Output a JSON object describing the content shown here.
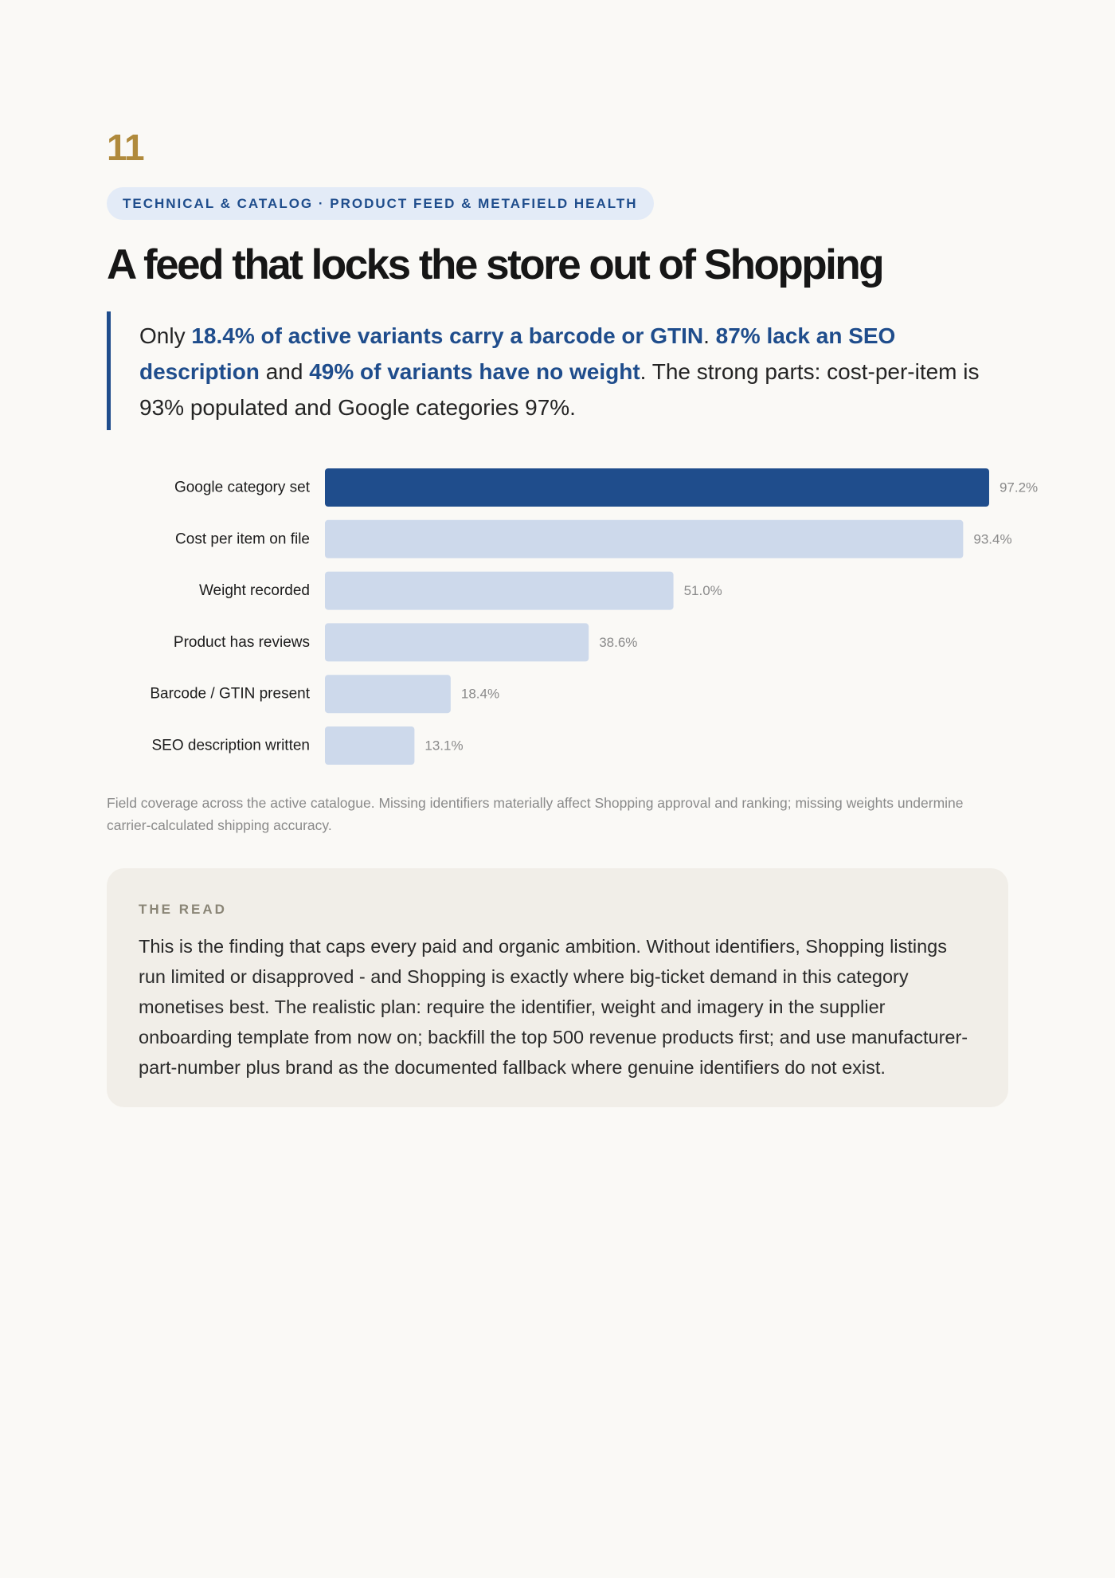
{
  "page": {
    "number": "11",
    "section_tag": "TECHNICAL & CATALOG · PRODUCT FEED & METAFIELD HEALTH",
    "headline": "A feed that locks the store out of Shopping"
  },
  "lede": {
    "t1": "Only ",
    "h1": "18.4% of active variants carry a barcode or GTIN",
    "t2": ". ",
    "h2": "87% lack an SEO description",
    "t3": " and ",
    "h3": "49% of variants have no weight",
    "t4": ". The strong parts: cost-per-item is 93% populated and Google categories 97%."
  },
  "chart_data": {
    "type": "bar",
    "orientation": "horizontal",
    "title": "",
    "xlabel": "",
    "ylabel": "",
    "xlim": [
      0,
      100
    ],
    "grid": false,
    "legend": "none",
    "categories": [
      "Google category set",
      "Cost per item on file",
      "Weight recorded",
      "Product has reviews",
      "Barcode / GTIN present",
      "SEO description written"
    ],
    "values": [
      97.2,
      93.4,
      51.0,
      38.6,
      18.4,
      13.1
    ],
    "value_labels": [
      "97.2%",
      "93.4%",
      "51.0%",
      "38.6%",
      "18.4%",
      "13.1%"
    ],
    "highlight_index": 0,
    "colors": {
      "highlight": "#1f4d8c",
      "default": "#cdd9eb"
    }
  },
  "caption": "Field coverage across the active catalogue. Missing identifiers materially affect Shopping approval and ranking; missing weights undermine carrier-calculated shipping accuracy.",
  "read": {
    "label": "THE READ",
    "body": "This is the finding that caps every paid and organic ambition. Without identifiers, Shopping listings run limited or disapproved - and Shopping is exactly where big-ticket demand in this category monetises best. The realistic plan: require the identifier, weight and imagery in the supplier onboarding template from now on; backfill the top 500 revenue products first; and use manufacturer-part-number plus brand as the documented fallback where genuine identifiers do not exist."
  }
}
